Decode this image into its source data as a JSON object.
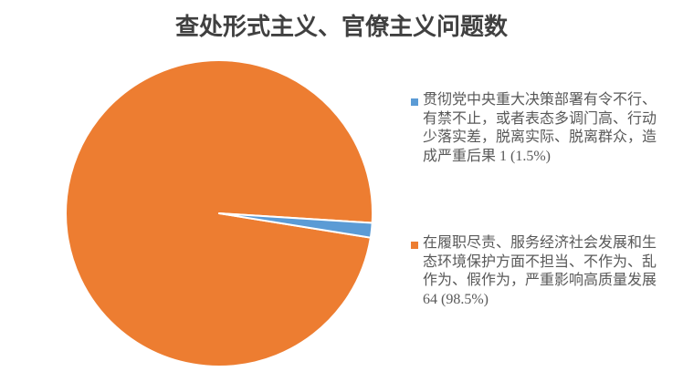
{
  "title": {
    "text": "查处形式主义、官僚主义问题数",
    "color": "#404040"
  },
  "legend": {
    "position": "right",
    "text_color": "#595959",
    "items": [
      {
        "marker_color": "#5B9BD5",
        "text": "贯彻党中央重大决策部署有令不行、\n有禁不止，或者表态多调门高、行动\n少落实差，脱离实际、脱离群众，造\n成严重后果 1 (1.5%)"
      },
      {
        "marker_color": "#ED7D31",
        "text": "在履职尽责、服务经济社会发展和生\n态环境保护方面不担当、不作为、乱\n作为、假作为，严重影响高质量发展\n64 (98.5%)"
      }
    ]
  },
  "chart_data": {
    "type": "pie",
    "title": "查处形式主义、官僚主义问题数",
    "slices": [
      {
        "name": "贯彻党中央重大决策部署有令不行、有禁不止，或者表态多调门高、行动少落实差，脱离实际、脱离群众，造成严重后果",
        "value": 1,
        "percent": "1.5%",
        "color": "#5B9BD5"
      },
      {
        "name": "在履职尽责、服务经济社会发展和生态环境保护方面不担当、不作为、乱作为、假作为，严重影响高质量发展",
        "value": 64,
        "percent": "98.5%",
        "color": "#ED7D31"
      }
    ],
    "total": 65,
    "start_angle_deg_clockwise_from_east": 3.6,
    "slice_border_color": "#FFFFFF",
    "legend_position": "right",
    "background": "#FFFFFF"
  }
}
